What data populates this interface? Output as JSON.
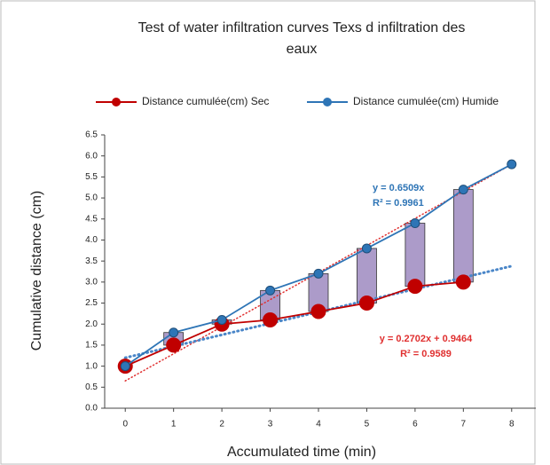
{
  "chart_data": {
    "type": "line",
    "title": [
      "Test of water infiltration curves Texs d infiltration des",
      "eaux"
    ],
    "x_label": "Accumulated time (min)",
    "y_label": "Cumulative distance (cm)",
    "series": [
      {
        "name": "Distance cumulée(cm) Sec",
        "color": "#c00000",
        "x": [
          0,
          1,
          2,
          3,
          4,
          5,
          6,
          7
        ],
        "values": [
          1.0,
          1.5,
          2.0,
          2.1,
          2.3,
          2.5,
          2.9,
          3.0
        ]
      },
      {
        "name": "Distance cumulée(cm) Humide",
        "color": "#2e75b6",
        "x": [
          0,
          1,
          2,
          3,
          4,
          5,
          6,
          7,
          8
        ],
        "values": [
          1.0,
          1.8,
          2.1,
          2.8,
          3.2,
          3.8,
          4.4,
          5.2,
          5.8
        ]
      }
    ],
    "updown_color": "#9e8ac0",
    "trendlines": [
      {
        "color": "#e03030",
        "x": [
          0,
          8
        ],
        "values": [
          0.65,
          5.8
        ]
      },
      {
        "color": "#4a86c8",
        "x": [
          0,
          8
        ],
        "values": [
          1.2,
          3.38
        ]
      }
    ],
    "annotations": [
      {
        "color": "#2e75b6",
        "lines": [
          "y = 0.6509x",
          "R² = 0.9961"
        ]
      },
      {
        "color": "#e03030",
        "lines": [
          "y = 0.2702x + 0.9464",
          "R² = 0.9589"
        ]
      }
    ],
    "xlim": [
      -0.5,
      8.5
    ],
    "xticks": [
      0,
      1,
      2,
      3,
      4,
      5,
      6,
      7,
      8
    ],
    "ylim": [
      0,
      6.5
    ],
    "yticks": [
      {
        "value": 0,
        "label": "0.0"
      },
      {
        "value": 0.5,
        "label": "0.5"
      },
      {
        "value": 1,
        "label": "1.0"
      },
      {
        "value": 1.5,
        "label": "1.5"
      },
      {
        "value": 2,
        "label": "2.0"
      },
      {
        "value": 2.5,
        "label": "2.5"
      },
      {
        "value": 3,
        "label": "3.0"
      },
      {
        "value": 3.5,
        "label": "3.5"
      },
      {
        "value": 4,
        "label": "4.0"
      },
      {
        "value": 4.5,
        "label": "4.5"
      },
      {
        "value": 5,
        "label": "5.0"
      },
      {
        "value": 5.5,
        "label": "5.5"
      },
      {
        "value": 6,
        "label": "6.0"
      },
      {
        "value": 6.5,
        "label": "6.5"
      }
    ]
  }
}
